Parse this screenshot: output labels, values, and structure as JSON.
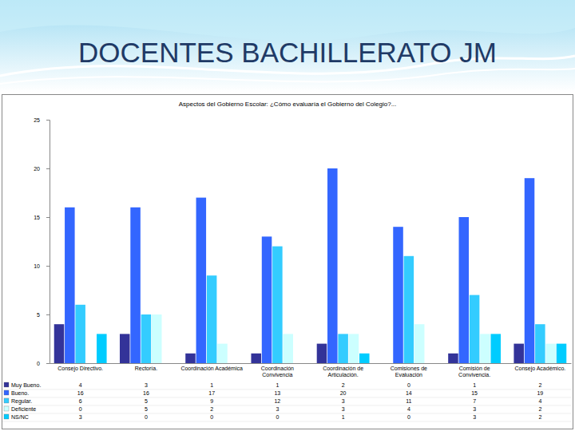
{
  "page": {
    "title": "DOCENTES BACHILLERATO JM"
  },
  "chart_data": {
    "type": "bar",
    "title": "Aspectos del Gobierno Escolar: ¿Cómo evaluaría el Gobierno del Colegio?...",
    "categories": [
      "Consejo Directivo.",
      "Rectoría.",
      "Coordinación Académica",
      "Coordinación Convivencia",
      "Coordinación de Articulación.",
      "Comisiones de Evaluación",
      "Comisión de Convivencia.",
      "Consejo Académico."
    ],
    "series": [
      {
        "name": "Muy Bueno.",
        "color": "#333399",
        "values": [
          4,
          3,
          1,
          1,
          2,
          0,
          1,
          2
        ]
      },
      {
        "name": "Bueno.",
        "color": "#3366ff",
        "values": [
          16,
          16,
          17,
          13,
          20,
          14,
          15,
          19
        ]
      },
      {
        "name": "Regular.",
        "color": "#33ccff",
        "values": [
          6,
          5,
          9,
          12,
          3,
          11,
          7,
          4
        ]
      },
      {
        "name": "Deficiente",
        "color": "#ccffff",
        "values": [
          0,
          5,
          2,
          3,
          3,
          4,
          3,
          2
        ]
      },
      {
        "name": "NS/NC",
        "color": "#00ccff",
        "values": [
          3,
          0,
          0,
          0,
          1,
          0,
          3,
          2
        ]
      }
    ],
    "ylim": [
      0,
      25
    ],
    "yticks": [
      0,
      5,
      10,
      15,
      20,
      25
    ],
    "grid": false,
    "data_labels": true
  }
}
